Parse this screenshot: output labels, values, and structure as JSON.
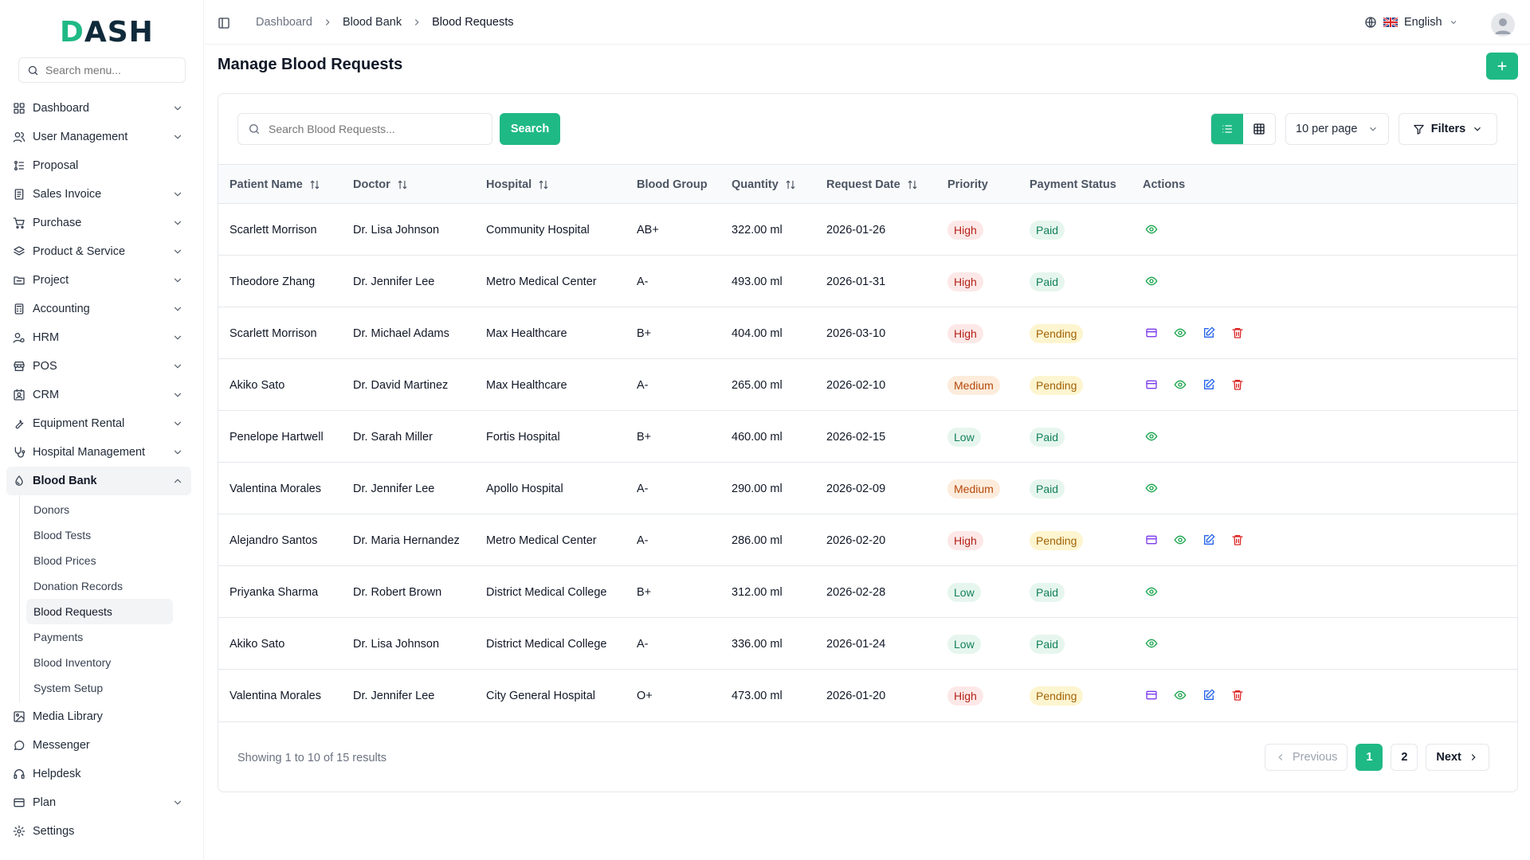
{
  "app": {
    "logo_main": "DASH",
    "logo_accent_letter": "D"
  },
  "sidebar": {
    "search_placeholder": "Search menu...",
    "items": [
      {
        "label": "Dashboard",
        "icon": "grid-icon",
        "chevron": true
      },
      {
        "label": "User Management",
        "icon": "users-icon",
        "chevron": true
      },
      {
        "label": "Proposal",
        "icon": "proposal-icon",
        "chevron": false
      },
      {
        "label": "Sales Invoice",
        "icon": "invoice-icon",
        "chevron": true
      },
      {
        "label": "Purchase",
        "icon": "cart-icon",
        "chevron": true
      },
      {
        "label": "Product & Service",
        "icon": "layers-icon",
        "chevron": true
      },
      {
        "label": "Project",
        "icon": "folder-icon",
        "chevron": true
      },
      {
        "label": "Accounting",
        "icon": "calculator-icon",
        "chevron": true
      },
      {
        "label": "HRM",
        "icon": "user-cog-icon",
        "chevron": true
      },
      {
        "label": "POS",
        "icon": "store-icon",
        "chevron": true
      },
      {
        "label": "CRM",
        "icon": "contact-icon",
        "chevron": true
      },
      {
        "label": "Equipment Rental",
        "icon": "wrench-icon",
        "chevron": true
      },
      {
        "label": "Hospital Management",
        "icon": "stethoscope-icon",
        "chevron": true
      },
      {
        "label": "Blood Bank",
        "icon": "droplet-icon",
        "chevron": true,
        "expanded": true
      }
    ],
    "sub_items": [
      "Donors",
      "Blood Tests",
      "Blood Prices",
      "Donation Records",
      "Blood Requests",
      "Payments",
      "Blood Inventory",
      "System Setup"
    ],
    "active_sub": "Blood Requests",
    "bottom_items": [
      {
        "label": "Media Library",
        "icon": "image-icon",
        "chevron": false
      },
      {
        "label": "Messenger",
        "icon": "message-icon",
        "chevron": false
      },
      {
        "label": "Helpdesk",
        "icon": "headphones-icon",
        "chevron": false
      },
      {
        "label": "Plan",
        "icon": "credit-card-icon",
        "chevron": true
      },
      {
        "label": "Settings",
        "icon": "gear-icon",
        "chevron": false
      }
    ]
  },
  "topbar": {
    "breadcrumb": [
      "Dashboard",
      "Blood Bank",
      "Blood Requests"
    ],
    "language": "English"
  },
  "page": {
    "title": "Manage Blood Requests",
    "search_placeholder": "Search Blood Requests...",
    "search_button": "Search",
    "per_page": "10 per page",
    "filters_label": "Filters"
  },
  "table": {
    "columns": [
      "Patient Name",
      "Doctor",
      "Hospital",
      "Blood Group",
      "Quantity",
      "Request Date",
      "Priority",
      "Payment Status",
      "Actions"
    ],
    "rows": [
      {
        "patient": "Scarlett Morrison",
        "doctor": "Dr. Lisa Johnson",
        "hospital": "Community Hospital",
        "blood_group": "AB+",
        "quantity": "322.00 ml",
        "date": "2026-01-26",
        "priority": "High",
        "payment": "Paid"
      },
      {
        "patient": "Theodore Zhang",
        "doctor": "Dr. Jennifer Lee",
        "hospital": "Metro Medical Center",
        "blood_group": "A-",
        "quantity": "493.00 ml",
        "date": "2026-01-31",
        "priority": "High",
        "payment": "Paid"
      },
      {
        "patient": "Scarlett Morrison",
        "doctor": "Dr. Michael Adams",
        "hospital": "Max Healthcare",
        "blood_group": "B+",
        "quantity": "404.00 ml",
        "date": "2026-03-10",
        "priority": "High",
        "payment": "Pending"
      },
      {
        "patient": "Akiko Sato",
        "doctor": "Dr. David Martinez",
        "hospital": "Max Healthcare",
        "blood_group": "A-",
        "quantity": "265.00 ml",
        "date": "2026-02-10",
        "priority": "Medium",
        "payment": "Pending"
      },
      {
        "patient": "Penelope Hartwell",
        "doctor": "Dr. Sarah Miller",
        "hospital": "Fortis Hospital",
        "blood_group": "B+",
        "quantity": "460.00 ml",
        "date": "2026-02-15",
        "priority": "Low",
        "payment": "Paid"
      },
      {
        "patient": "Valentina Morales",
        "doctor": "Dr. Jennifer Lee",
        "hospital": "Apollo Hospital",
        "blood_group": "A-",
        "quantity": "290.00 ml",
        "date": "2026-02-09",
        "priority": "Medium",
        "payment": "Paid"
      },
      {
        "patient": "Alejandro Santos",
        "doctor": "Dr. Maria Hernandez",
        "hospital": "Metro Medical Center",
        "blood_group": "A-",
        "quantity": "286.00 ml",
        "date": "2026-02-20",
        "priority": "High",
        "payment": "Pending"
      },
      {
        "patient": "Priyanka Sharma",
        "doctor": "Dr. Robert Brown",
        "hospital": "District Medical College",
        "blood_group": "B+",
        "quantity": "312.00 ml",
        "date": "2026-02-28",
        "priority": "Low",
        "payment": "Paid"
      },
      {
        "patient": "Akiko Sato",
        "doctor": "Dr. Lisa Johnson",
        "hospital": "District Medical College",
        "blood_group": "A-",
        "quantity": "336.00 ml",
        "date": "2026-01-24",
        "priority": "Low",
        "payment": "Paid"
      },
      {
        "patient": "Valentina Morales",
        "doctor": "Dr. Jennifer Lee",
        "hospital": "City General Hospital",
        "blood_group": "O+",
        "quantity": "473.00 ml",
        "date": "2026-01-20",
        "priority": "High",
        "payment": "Pending"
      }
    ]
  },
  "pagination": {
    "summary": "Showing 1 to 10 of 15 results",
    "previous": "Previous",
    "pages": [
      "1",
      "2"
    ],
    "current": "1",
    "next": "Next"
  },
  "colors": {
    "accent": "#1fb985",
    "high": "#b42318",
    "medium": "#b54708",
    "low": "#12805c",
    "pending": "#a16207"
  }
}
